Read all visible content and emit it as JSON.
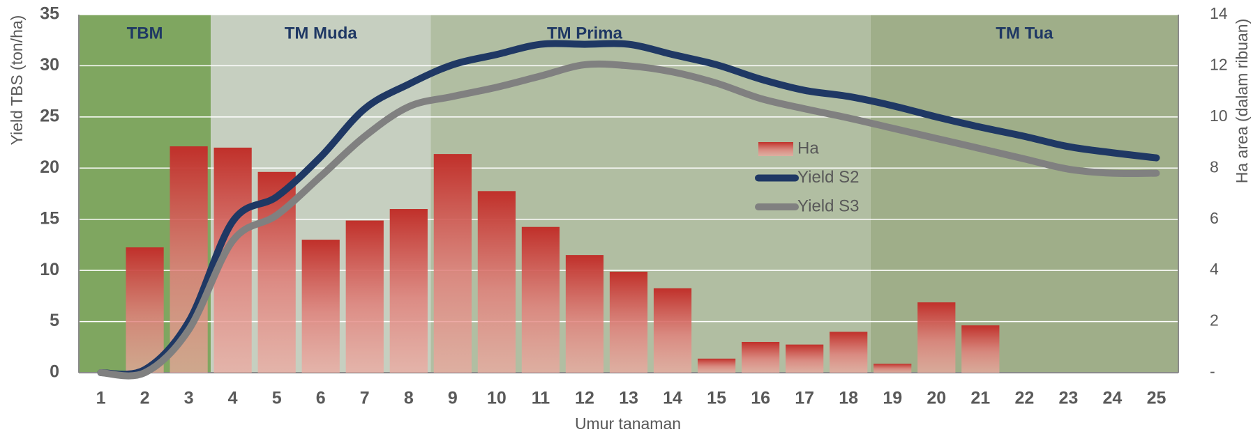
{
  "chart_data": {
    "type": "bar-line",
    "x_label": "Umur tanaman",
    "y_label": "Yield TBS (ton/ha)",
    "y2_label": "Ha area (dalam ribuan)",
    "categories": [
      "1",
      "2",
      "3",
      "4",
      "5",
      "6",
      "7",
      "8",
      "9",
      "10",
      "11",
      "12",
      "13",
      "14",
      "15",
      "16",
      "17",
      "18",
      "19",
      "20",
      "21",
      "22",
      "23",
      "24",
      "25"
    ],
    "phases": [
      {
        "label": "TBM",
        "from": "1",
        "to": "3",
        "color": "#7fa660"
      },
      {
        "label": "TM Muda",
        "from": "4",
        "to": "8",
        "color": "#c6cfc0"
      },
      {
        "label": "TM Prima",
        "from": "9",
        "to": "18",
        "color": "#b1bea2"
      },
      {
        "label": "TM Tua",
        "from": "19",
        "to": "25",
        "color": "#9fae89"
      }
    ],
    "series": [
      {
        "name": "Ha",
        "type": "bar",
        "axis": "y2",
        "color": "#c0302a",
        "values": [
          null,
          4.9,
          8.85,
          8.8,
          7.85,
          5.2,
          5.95,
          6.4,
          8.55,
          7.1,
          5.7,
          4.6,
          3.95,
          3.3,
          0.55,
          1.2,
          1.1,
          1.6,
          0.35,
          2.75,
          1.85,
          null,
          null,
          null,
          null
        ]
      },
      {
        "name": "Yield S2",
        "type": "line",
        "color": "#1f3864",
        "values": [
          0,
          0.3,
          5,
          14.8,
          17.2,
          21.1,
          25.8,
          28.2,
          30.1,
          31.1,
          32.1,
          32.1,
          32.1,
          31.1,
          30.1,
          28.7,
          27.6,
          27,
          26.1,
          25,
          24,
          23.1,
          22.1,
          21.5,
          21
        ]
      },
      {
        "name": "Yield S3",
        "type": "line",
        "color": "#808080",
        "values": [
          0,
          0,
          4.2,
          12.9,
          15.4,
          19.2,
          23.1,
          26,
          27,
          27.9,
          29,
          30.1,
          30,
          29.4,
          28.3,
          26.8,
          25.8,
          24.9,
          23.9,
          22.9,
          21.9,
          20.9,
          19.9,
          19.5,
          19.5
        ]
      }
    ],
    "ylim": [
      0,
      35
    ],
    "yticks": [
      0,
      5,
      10,
      15,
      20,
      25,
      30,
      35
    ],
    "y2lim": [
      0,
      14
    ],
    "y2ticks": [
      {
        "value": 0,
        "label": "-"
      },
      2,
      4,
      6,
      8,
      10,
      12,
      14
    ],
    "grid": true
  }
}
